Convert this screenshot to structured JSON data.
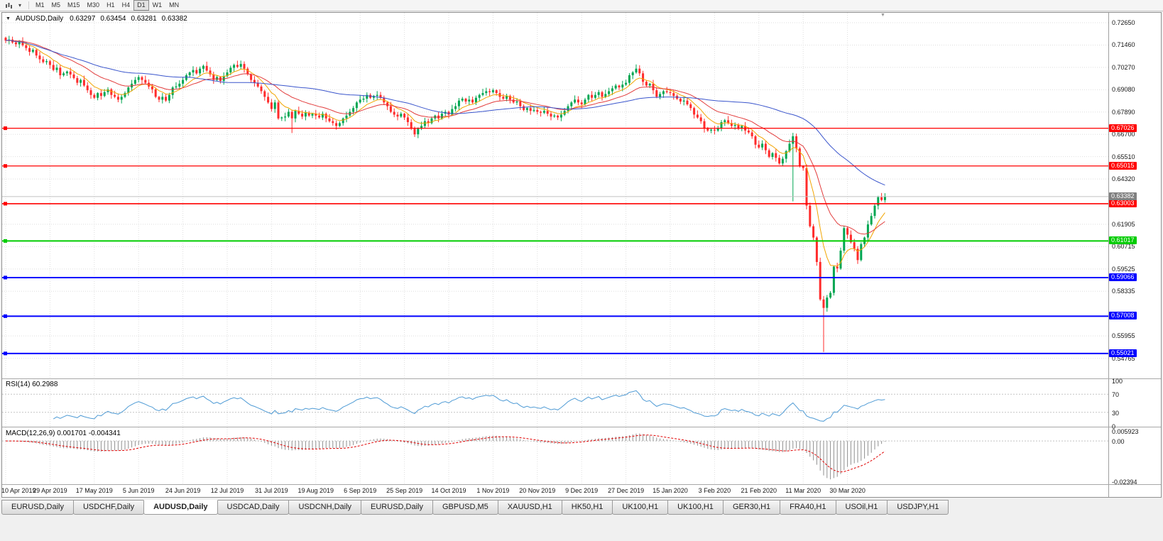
{
  "toolbar": {
    "timeframes": [
      "M1",
      "M5",
      "M15",
      "M30",
      "H1",
      "H4",
      "D1",
      "W1",
      "MN"
    ],
    "active_timeframe": "D1"
  },
  "icons": {
    "symbol_dropdown": "▼",
    "toolbar_dropdown": "▾",
    "shift_marker": "▼"
  },
  "chart": {
    "symbol_label": "AUDUSD,Daily",
    "ohlc": {
      "open": "0.63297",
      "high": "0.63454",
      "low": "0.63281",
      "close": "0.63382"
    },
    "current_price": {
      "label": "0.63382",
      "value": 0.63382
    },
    "price_ticks": [
      "0.72650",
      "0.71460",
      "0.70270",
      "0.69080",
      "0.67890",
      "0.66700",
      "0.65510",
      "0.64320",
      "0.61905",
      "0.60715",
      "0.59525",
      "0.58335",
      "0.55955",
      "0.54765"
    ],
    "levels": [
      {
        "value": 0.67026,
        "label": "0.67026",
        "color": "#FF0000",
        "width": 1.3
      },
      {
        "value": 0.65015,
        "label": "0.65015",
        "color": "#FF0000",
        "width": 1.3
      },
      {
        "value": 0.63003,
        "label": "0.63003",
        "color": "#FF0000",
        "width": 1.6
      },
      {
        "value": 0.61017,
        "label": "0.61017",
        "color": "#00CC00",
        "width": 2
      },
      {
        "value": 0.59066,
        "label": "0.59066",
        "color": "#0000FF",
        "width": 2
      },
      {
        "value": 0.57008,
        "label": "0.57008",
        "color": "#0000FF",
        "width": 2
      },
      {
        "value": 0.55021,
        "label": "0.55021",
        "color": "#0000FF",
        "width": 2
      }
    ],
    "dates": [
      "10 Apr 2019",
      "29 Apr 2019",
      "17 May 2019",
      "5 Jun 2019",
      "24 Jun 2019",
      "12 Jul 2019",
      "31 Jul 2019",
      "19 Aug 2019",
      "6 Sep 2019",
      "25 Sep 2019",
      "14 Oct 2019",
      "1 Nov 2019",
      "20 Nov 2019",
      "9 Dec 2019",
      "27 Dec 2019",
      "15 Jan 2020",
      "3 Feb 2020",
      "21 Feb 2020",
      "11 Mar 2020",
      "30 Mar 2020"
    ]
  },
  "rsi": {
    "name": "RSI(14)",
    "value": "60.2988",
    "axis_labels": [
      "100",
      "70",
      "30",
      "0"
    ],
    "levels": [
      70,
      30
    ]
  },
  "macd": {
    "name": "MACD(12,26,9)",
    "value_main": "0.001701",
    "value_signal": "-0.004341",
    "axis_labels": [
      "0.005923",
      "0.00",
      "-0.02394"
    ]
  },
  "tabs": {
    "active_index": 2,
    "items": [
      "EURUSD,Daily",
      "USDCHF,Daily",
      "AUDUSD,Daily",
      "USDCAD,Daily",
      "USDCNH,Daily",
      "EURUSD,Daily",
      "GBPUSD,M5",
      "XAUUSD,H1",
      "HK50,H1",
      "UK100,H1",
      "UK100,H1",
      "GER30,H1",
      "FRA40,H1",
      "USOil,H1",
      "USDJPY,H1"
    ]
  },
  "colors": {
    "bull": "#00A651",
    "bear": "#FF2B2B",
    "ma_fast": "#F2A500",
    "ma_mid": "#E23B3B",
    "ma_slow": "#3A55CC",
    "rsi": "#4F9BD5",
    "macd_hist": "#8f8f8f",
    "macd_signal": "#E00000",
    "current": "#808080",
    "grid": "#dedede",
    "ind_grid": "#c4c4c4"
  },
  "chart_data": {
    "type": "candlestick",
    "symbol": "AUDUSD",
    "timeframe": "Daily",
    "title": "AUDUSD,Daily 0.63297 0.63454 0.63281 0.63382",
    "bars_per_label": 13,
    "price_axis_range": {
      "top": 0.7318,
      "bottom": 0.5369
    },
    "indicators": [
      {
        "name": "RSI",
        "period": 14,
        "last": 60.2988
      },
      {
        "name": "MACD",
        "params": [
          12,
          26,
          9
        ],
        "last": [
          0.001701,
          -0.004341
        ]
      },
      {
        "name": "MA",
        "periods": [
          8,
          21,
          55
        ]
      }
    ],
    "wick_overrides": {
      "84": {
        "low": 0.6677
      },
      "231": {
        "low": 0.6313
      },
      "240": {
        "low": 0.551
      }
    },
    "closes": [
      0.717,
      0.7175,
      0.716,
      0.715,
      0.7165,
      0.7145,
      0.713,
      0.711,
      0.712,
      0.709,
      0.707,
      0.7055,
      0.706,
      0.704,
      0.7013,
      0.7025,
      0.6985,
      0.6995,
      0.7005,
      0.6989,
      0.697,
      0.6945,
      0.696,
      0.693,
      0.6905,
      0.688,
      0.6865,
      0.689,
      0.6875,
      0.6895,
      0.691,
      0.688,
      0.687,
      0.6855,
      0.687,
      0.689,
      0.692,
      0.694,
      0.696,
      0.6975,
      0.696,
      0.6945,
      0.6925,
      0.691,
      0.687,
      0.6855,
      0.687,
      0.685,
      0.688,
      0.692,
      0.6925,
      0.694,
      0.696,
      0.6985,
      0.7,
      0.7013,
      0.6995,
      0.702,
      0.7035,
      0.701,
      0.699,
      0.696,
      0.6975,
      0.6955,
      0.698,
      0.7,
      0.7025,
      0.704,
      0.703,
      0.7045,
      0.702,
      0.699,
      0.696,
      0.6945,
      0.6925,
      0.69,
      0.687,
      0.684,
      0.6805,
      0.684,
      0.6755,
      0.676,
      0.6765,
      0.679,
      0.6755,
      0.6795,
      0.678,
      0.6765,
      0.6785,
      0.677,
      0.678,
      0.677,
      0.676,
      0.678,
      0.6755,
      0.674,
      0.673,
      0.6715,
      0.673,
      0.6755,
      0.677,
      0.679,
      0.681,
      0.684,
      0.6855,
      0.686,
      0.688,
      0.6865,
      0.6875,
      0.688,
      0.6865,
      0.684,
      0.682,
      0.679,
      0.6775,
      0.6765,
      0.678,
      0.676,
      0.6735,
      0.67,
      0.667,
      0.67,
      0.6715,
      0.674,
      0.673,
      0.6755,
      0.677,
      0.6755,
      0.678,
      0.679,
      0.6775,
      0.6805,
      0.682,
      0.685,
      0.686,
      0.6845,
      0.6855,
      0.684,
      0.6865,
      0.688,
      0.689,
      0.69,
      0.6895,
      0.6905,
      0.689,
      0.687,
      0.686,
      0.6875,
      0.6855,
      0.684,
      0.6845,
      0.682,
      0.68,
      0.681,
      0.6795,
      0.68,
      0.679,
      0.6785,
      0.6795,
      0.678,
      0.6765,
      0.677,
      0.676,
      0.6775,
      0.6795,
      0.682,
      0.684,
      0.6855,
      0.684,
      0.683,
      0.6855,
      0.688,
      0.6865,
      0.688,
      0.6895,
      0.687,
      0.6885,
      0.69,
      0.6915,
      0.693,
      0.692,
      0.6935,
      0.6945,
      0.6985,
      0.7,
      0.702,
      0.6995,
      0.695,
      0.693,
      0.694,
      0.6905,
      0.687,
      0.6885,
      0.69,
      0.6895,
      0.689,
      0.6875,
      0.686,
      0.6845,
      0.685,
      0.683,
      0.681,
      0.6775,
      0.676,
      0.674,
      0.67,
      0.669,
      0.6695,
      0.669,
      0.67,
      0.6735,
      0.6745,
      0.673,
      0.6715,
      0.672,
      0.67,
      0.6715,
      0.669,
      0.668,
      0.666,
      0.6615,
      0.66,
      0.662,
      0.6585,
      0.655,
      0.657,
      0.6545,
      0.6515,
      0.654,
      0.658,
      0.662,
      0.666,
      0.6595,
      0.65,
      0.649,
      0.629,
      0.618,
      0.612,
      0.599,
      0.579,
      0.5745,
      0.58,
      0.5825,
      0.5965,
      0.5955,
      0.605,
      0.617,
      0.6135,
      0.6095,
      0.606,
      0.6,
      0.6085,
      0.612,
      0.619,
      0.6235,
      0.629,
      0.6335,
      0.632,
      0.6338
    ]
  }
}
